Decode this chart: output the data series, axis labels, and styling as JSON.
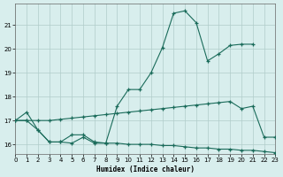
{
  "xlabel": "Humidex (Indice chaleur)",
  "x_ticks": [
    0,
    1,
    2,
    3,
    4,
    5,
    6,
    7,
    8,
    9,
    10,
    11,
    12,
    13,
    14,
    15,
    16,
    17,
    18,
    19,
    20,
    21,
    22,
    23
  ],
  "xlim": [
    0,
    23
  ],
  "ylim": [
    15.6,
    21.9
  ],
  "y_ticks": [
    16,
    17,
    18,
    19,
    20,
    21
  ],
  "bg_color": "#d8eeed",
  "grid_color": "#b0ccca",
  "line_color": "#1a6b5a",
  "line1_x": [
    0,
    1,
    2,
    3,
    4,
    5,
    6,
    7,
    8,
    9,
    10,
    11,
    12,
    13,
    14,
    15,
    16,
    17,
    18,
    19,
    20,
    21
  ],
  "line1_y": [
    17.0,
    17.35,
    16.6,
    16.1,
    16.1,
    16.4,
    16.4,
    16.1,
    16.05,
    17.6,
    18.3,
    18.3,
    19.0,
    20.05,
    21.5,
    21.6,
    21.1,
    19.5,
    19.8,
    20.15,
    20.2,
    20.2
  ],
  "line2_x": [
    0,
    1,
    2,
    3,
    4,
    5,
    6,
    7,
    8,
    9,
    10,
    11,
    12,
    13,
    14,
    15,
    16,
    17,
    18,
    19,
    20,
    21,
    22,
    23
  ],
  "line2_y": [
    17.0,
    17.0,
    17.0,
    17.0,
    17.05,
    17.1,
    17.15,
    17.2,
    17.25,
    17.3,
    17.35,
    17.4,
    17.45,
    17.5,
    17.55,
    17.6,
    17.65,
    17.7,
    17.75,
    17.8,
    17.5,
    17.6,
    16.3,
    16.3
  ],
  "line3_x": [
    0,
    1,
    2,
    3,
    4,
    5,
    6,
    7,
    8,
    9,
    10,
    11,
    12,
    13,
    14,
    15,
    16,
    17,
    18,
    19,
    20,
    21,
    22,
    23
  ],
  "line3_y": [
    17.0,
    17.0,
    16.6,
    16.1,
    16.1,
    16.05,
    16.3,
    16.05,
    16.05,
    16.05,
    16.0,
    16.0,
    16.0,
    15.95,
    15.95,
    15.9,
    15.85,
    15.85,
    15.8,
    15.8,
    15.75,
    15.75,
    15.7,
    15.65
  ]
}
